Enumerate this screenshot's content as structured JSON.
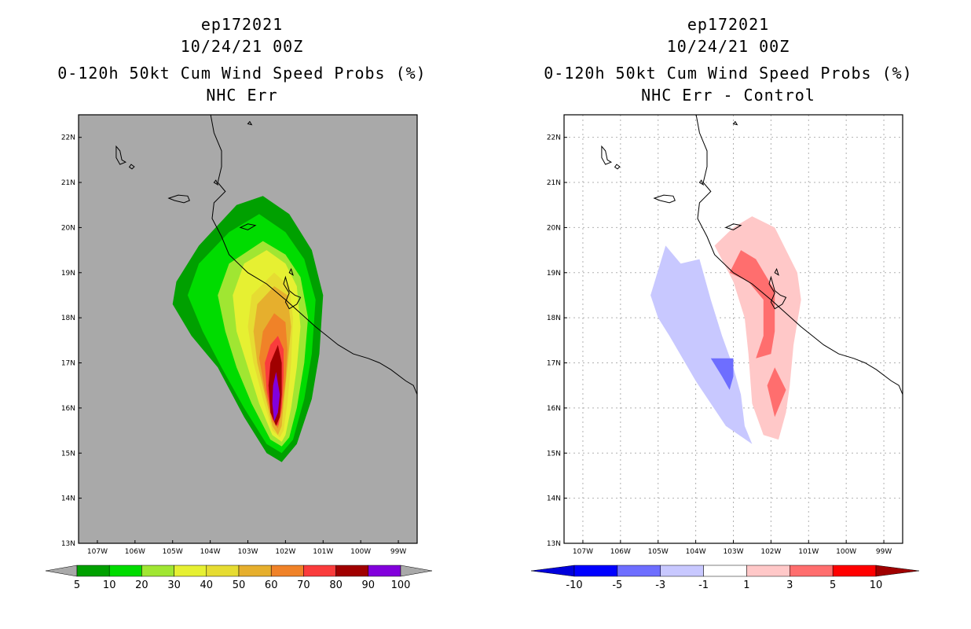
{
  "chart_data": [
    {
      "type": "heatmap",
      "title_lines": [
        "ep172021",
        "10/24/21 00Z",
        "0-120h 50kt Cum Wind Speed Probs (%)",
        "NHC Err"
      ],
      "x_axis": {
        "ticks": [
          "107W",
          "106W",
          "105W",
          "104W",
          "103W",
          "102W",
          "101W",
          "100W",
          "99W"
        ],
        "range": [
          -107.5,
          -98.5
        ]
      },
      "y_axis": {
        "ticks": [
          "13N",
          "14N",
          "15N",
          "16N",
          "17N",
          "18N",
          "19N",
          "20N",
          "21N",
          "22N"
        ],
        "range": [
          13,
          22.5
        ]
      },
      "background_color": "#a9a9a9",
      "colorbar": {
        "labels": [
          "5",
          "10",
          "20",
          "30",
          "40",
          "50",
          "60",
          "70",
          "80",
          "90",
          "100"
        ],
        "colors": [
          "#00a000",
          "#00dc00",
          "#a0e632",
          "#e6f032",
          "#e6dc32",
          "#e6af2d",
          "#f08228",
          "#fa3c3c",
          "#a00000",
          "#8200dc"
        ]
      },
      "contours": [
        {
          "level": "5",
          "color": "#00a000",
          "poly": [
            [
              -102.6,
              20.7
            ],
            [
              -101.9,
              20.3
            ],
            [
              -101.3,
              19.5
            ],
            [
              -101.0,
              18.5
            ],
            [
              -101.1,
              17.2
            ],
            [
              -101.3,
              16.2
            ],
            [
              -101.7,
              15.2
            ],
            [
              -102.1,
              14.8
            ],
            [
              -102.5,
              15.0
            ],
            [
              -103.1,
              15.8
            ],
            [
              -103.8,
              16.9
            ],
            [
              -104.5,
              17.6
            ],
            [
              -105.0,
              18.3
            ],
            [
              -104.9,
              18.8
            ],
            [
              -104.3,
              19.6
            ],
            [
              -103.3,
              20.5
            ]
          ]
        },
        {
          "level": "10",
          "color": "#00dc00",
          "poly": [
            [
              -102.7,
              20.3
            ],
            [
              -102.0,
              19.9
            ],
            [
              -101.5,
              19.3
            ],
            [
              -101.2,
              18.4
            ],
            [
              -101.3,
              17.2
            ],
            [
              -101.5,
              16.2
            ],
            [
              -101.8,
              15.3
            ],
            [
              -102.1,
              15.0
            ],
            [
              -102.5,
              15.2
            ],
            [
              -103.1,
              16.0
            ],
            [
              -103.7,
              16.9
            ],
            [
              -104.2,
              17.7
            ],
            [
              -104.6,
              18.5
            ],
            [
              -104.3,
              19.2
            ],
            [
              -103.5,
              19.9
            ]
          ]
        },
        {
          "level": "20",
          "color": "#a0e632",
          "poly": [
            [
              -102.6,
              19.7
            ],
            [
              -102.0,
              19.4
            ],
            [
              -101.6,
              18.9
            ],
            [
              -101.4,
              18.0
            ],
            [
              -101.5,
              17.0
            ],
            [
              -101.7,
              16.0
            ],
            [
              -101.9,
              15.35
            ],
            [
              -102.1,
              15.15
            ],
            [
              -102.4,
              15.3
            ],
            [
              -102.9,
              16.1
            ],
            [
              -103.3,
              16.9
            ],
            [
              -103.6,
              17.7
            ],
            [
              -103.8,
              18.5
            ],
            [
              -103.5,
              19.2
            ]
          ]
        },
        {
          "level": "30",
          "color": "#e6f032",
          "poly": [
            [
              -102.5,
              19.5
            ],
            [
              -102.0,
              19.2
            ],
            [
              -101.7,
              18.7
            ],
            [
              -101.6,
              17.8
            ],
            [
              -101.7,
              16.9
            ],
            [
              -101.85,
              16.0
            ],
            [
              -102.0,
              15.4
            ],
            [
              -102.1,
              15.25
            ],
            [
              -102.35,
              15.4
            ],
            [
              -102.7,
              16.1
            ],
            [
              -103.0,
              16.9
            ],
            [
              -103.3,
              17.7
            ],
            [
              -103.4,
              18.5
            ],
            [
              -103.1,
              19.2
            ]
          ]
        },
        {
          "level": "40",
          "color": "#e6dc32",
          "poly": [
            [
              -102.3,
              19.0
            ],
            [
              -101.9,
              18.7
            ],
            [
              -101.8,
              18.0
            ],
            [
              -101.85,
              17.0
            ],
            [
              -101.95,
              16.1
            ],
            [
              -102.05,
              15.5
            ],
            [
              -102.15,
              15.35
            ],
            [
              -102.35,
              15.5
            ],
            [
              -102.6,
              16.2
            ],
            [
              -102.85,
              17.0
            ],
            [
              -103.0,
              17.8
            ],
            [
              -102.9,
              18.5
            ]
          ]
        },
        {
          "level": "50",
          "color": "#e6af2d",
          "poly": [
            [
              -102.3,
              18.7
            ],
            [
              -101.95,
              18.5
            ],
            [
              -101.85,
              17.8
            ],
            [
              -101.95,
              16.9
            ],
            [
              -102.05,
              16.1
            ],
            [
              -102.1,
              15.6
            ],
            [
              -102.2,
              15.4
            ],
            [
              -102.35,
              15.6
            ],
            [
              -102.55,
              16.3
            ],
            [
              -102.75,
              17.0
            ],
            [
              -102.85,
              17.7
            ],
            [
              -102.75,
              18.3
            ]
          ]
        },
        {
          "level": "60",
          "color": "#f08228",
          "poly": [
            [
              -102.3,
              18.1
            ],
            [
              -102.0,
              17.9
            ],
            [
              -101.95,
              17.3
            ],
            [
              -102.0,
              16.6
            ],
            [
              -102.1,
              15.9
            ],
            [
              -102.2,
              15.55
            ],
            [
              -102.35,
              15.7
            ],
            [
              -102.55,
              16.4
            ],
            [
              -102.7,
              17.1
            ],
            [
              -102.6,
              17.7
            ]
          ]
        },
        {
          "level": "70",
          "color": "#fa3c3c",
          "poly": [
            [
              -102.2,
              17.6
            ],
            [
              -102.05,
              17.3
            ],
            [
              -102.05,
              16.7
            ],
            [
              -102.1,
              16.0
            ],
            [
              -102.2,
              15.6
            ],
            [
              -102.35,
              15.75
            ],
            [
              -102.5,
              16.4
            ],
            [
              -102.55,
              17.0
            ],
            [
              -102.4,
              17.4
            ]
          ]
        },
        {
          "level": "80",
          "color": "#a00000",
          "poly": [
            [
              -102.2,
              17.4
            ],
            [
              -102.1,
              17.0
            ],
            [
              -102.1,
              16.3
            ],
            [
              -102.15,
              15.8
            ],
            [
              -102.25,
              15.6
            ],
            [
              -102.4,
              15.9
            ],
            [
              -102.45,
              16.5
            ],
            [
              -102.4,
              17.0
            ]
          ]
        },
        {
          "level": "90",
          "color": "#8200dc",
          "poly": [
            [
              -102.25,
              16.8
            ],
            [
              -102.15,
              16.3
            ],
            [
              -102.2,
              15.9
            ],
            [
              -102.3,
              15.7
            ],
            [
              -102.35,
              16.1
            ],
            [
              -102.33,
              16.5
            ]
          ]
        }
      ]
    },
    {
      "type": "heatmap",
      "title_lines": [
        "ep172021",
        "10/24/21 00Z",
        "0-120h 50kt Cum Wind Speed Probs (%)",
        "NHC Err - Control"
      ],
      "x_axis": {
        "ticks": [
          "107W",
          "106W",
          "105W",
          "104W",
          "103W",
          "102W",
          "101W",
          "100W",
          "99W"
        ],
        "range": [
          -107.5,
          -98.5
        ]
      },
      "y_axis": {
        "ticks": [
          "13N",
          "14N",
          "15N",
          "16N",
          "17N",
          "18N",
          "19N",
          "20N",
          "21N",
          "22N"
        ],
        "range": [
          13,
          22.5
        ]
      },
      "background_color": "#ffffff",
      "grid": true,
      "colorbar": {
        "labels": [
          "-10",
          "-5",
          "-3",
          "-1",
          "1",
          "3",
          "5",
          "10"
        ],
        "colors": [
          "#0000dc",
          "#0000ff",
          "#6e6eff",
          "#c8c8ff",
          "#ffffff",
          "#ffc8c8",
          "#ff6e6e",
          "#ff0000",
          "#a00000"
        ]
      },
      "contours": [
        {
          "level": "-1 to -3",
          "color": "#c8c8ff",
          "poly": [
            [
              -104.8,
              19.6
            ],
            [
              -104.4,
              19.2
            ],
            [
              -103.9,
              19.3
            ],
            [
              -103.6,
              18.4
            ],
            [
              -103.3,
              17.6
            ],
            [
              -103.0,
              16.9
            ],
            [
              -102.8,
              16.3
            ],
            [
              -102.7,
              15.6
            ],
            [
              -102.5,
              15.2
            ],
            [
              -103.2,
              15.6
            ],
            [
              -104.0,
              16.6
            ],
            [
              -104.7,
              17.6
            ],
            [
              -105.0,
              18.0
            ],
            [
              -105.2,
              18.5
            ]
          ]
        },
        {
          "level": "-3 to -5",
          "color": "#6e6eff",
          "poly": [
            [
              -103.6,
              17.1
            ],
            [
              -103.0,
              17.1
            ],
            [
              -103.0,
              16.7
            ],
            [
              -103.1,
              16.4
            ],
            [
              -103.3,
              16.7
            ]
          ]
        },
        {
          "level": "1 to 3",
          "color": "#ffc8c8",
          "poly": [
            [
              -103.0,
              20.0
            ],
            [
              -102.5,
              20.25
            ],
            [
              -101.9,
              20.0
            ],
            [
              -101.3,
              19.0
            ],
            [
              -101.2,
              18.4
            ],
            [
              -101.4,
              17.4
            ],
            [
              -101.5,
              16.5
            ],
            [
              -101.6,
              15.9
            ],
            [
              -101.8,
              15.3
            ],
            [
              -102.2,
              15.4
            ],
            [
              -102.5,
              16.1
            ],
            [
              -102.6,
              17.2
            ],
            [
              -102.7,
              18.0
            ],
            [
              -103.0,
              18.8
            ],
            [
              -103.5,
              19.6
            ]
          ]
        },
        {
          "level": "3 to 5",
          "color": "#ff6e6e",
          "poly": [
            [
              -102.8,
              19.5
            ],
            [
              -102.4,
              19.3
            ],
            [
              -101.9,
              18.6
            ],
            [
              -101.9,
              17.7
            ],
            [
              -102.0,
              17.2
            ],
            [
              -102.4,
              17.1
            ],
            [
              -102.2,
              17.6
            ],
            [
              -102.2,
              18.0
            ],
            [
              -102.2,
              18.4
            ],
            [
              -102.6,
              18.8
            ],
            [
              -103.1,
              19.0
            ]
          ]
        },
        {
          "level": "3 to 5",
          "color": "#ff6e6e",
          "poly": [
            [
              -101.9,
              16.9
            ],
            [
              -101.6,
              16.4
            ],
            [
              -101.9,
              15.8
            ],
            [
              -102.1,
              16.5
            ]
          ]
        }
      ]
    }
  ]
}
